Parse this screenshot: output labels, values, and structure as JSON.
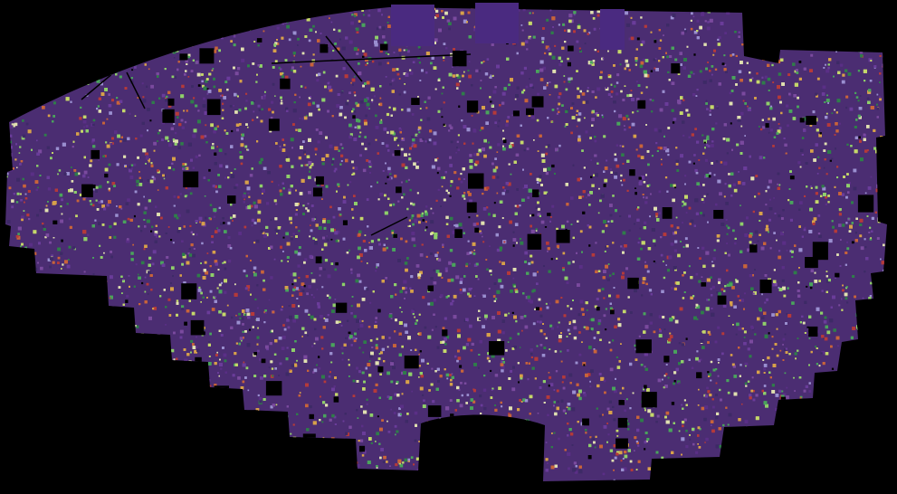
{
  "image": {
    "description_tag": "wide-field-sky-survey-mosaic",
    "background_color": "#000000",
    "base_color": "#4b2d72",
    "speckle_palette": [
      "#5a2f86",
      "#6a3c9a",
      "#3d2a66",
      "#2f7d4a",
      "#4aa45c",
      "#8fcf6a",
      "#c5d86a",
      "#d7a14a",
      "#c8643a",
      "#b53a3a",
      "#7a4a9e",
      "#9a8fd0",
      "#e0e0b0"
    ],
    "blank_panel_color": "#4a2a80"
  }
}
